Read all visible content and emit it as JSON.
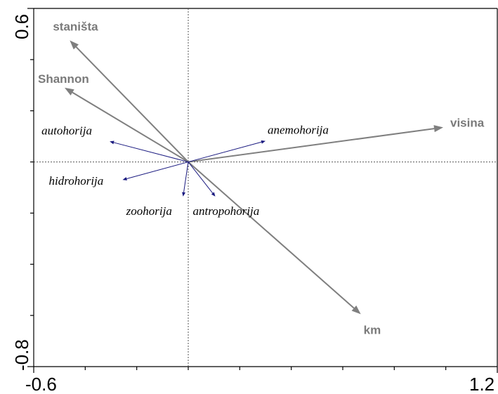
{
  "chart_data": {
    "type": "biplot",
    "xlim": [
      -0.6,
      1.2
    ],
    "ylim": [
      -0.8,
      0.6
    ],
    "x_tick_labels": [
      "-0.6",
      "1.2"
    ],
    "y_tick_labels": [
      "0.6",
      "-0.8"
    ],
    "grid": false,
    "colors": {
      "environment": "#7f7f7f",
      "species": "#1a1a80",
      "axis": "#000000"
    },
    "environment_vectors": [
      {
        "name": "staništa",
        "x": -0.46,
        "y": 0.475
      },
      {
        "name": "Shannon",
        "x": -0.48,
        "y": 0.29
      },
      {
        "name": "visina",
        "x": 0.99,
        "y": 0.135
      },
      {
        "name": "km",
        "x": 0.67,
        "y": -0.595
      }
    ],
    "species_vectors": [
      {
        "name": "autohorija",
        "x": -0.305,
        "y": 0.08
      },
      {
        "name": "anemohorija",
        "x": 0.3,
        "y": 0.082
      },
      {
        "name": "hidrohorija",
        "x": -0.255,
        "y": -0.07
      },
      {
        "name": "zoohorija",
        "x": -0.02,
        "y": -0.135
      },
      {
        "name": "antropohorija",
        "x": 0.105,
        "y": -0.135
      }
    ]
  }
}
